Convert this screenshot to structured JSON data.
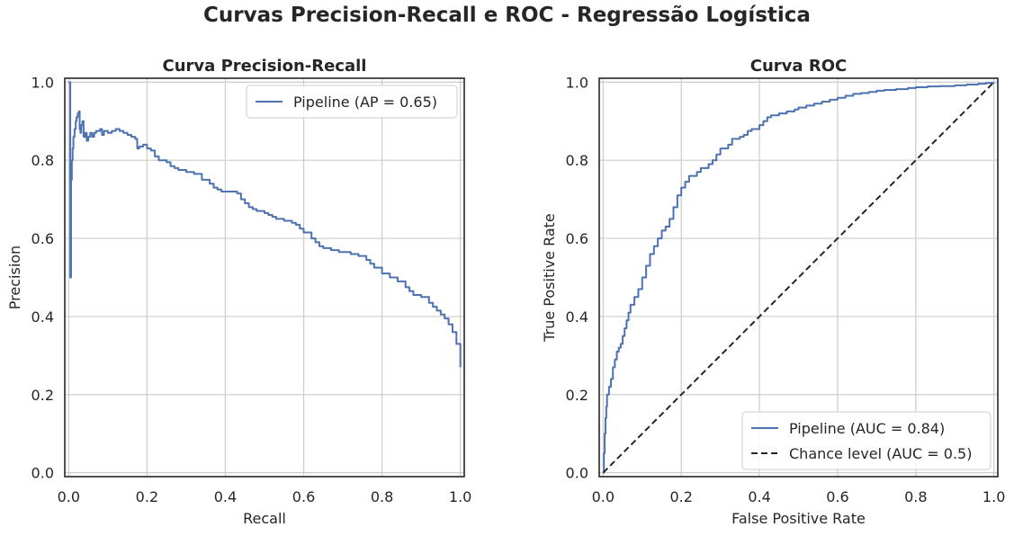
{
  "figure": {
    "suptitle": "Curvas Precision-Recall e ROC - Regressão Logística"
  },
  "chart_data": [
    {
      "type": "line",
      "title": "Curva Precision-Recall",
      "xlabel": "Recall",
      "ylabel": "Precision",
      "xlim": [
        -0.01,
        1.01
      ],
      "ylim": [
        -0.01,
        1.01
      ],
      "xticks": [
        "0.0",
        "0.2",
        "0.4",
        "0.6",
        "0.8",
        "1.0"
      ],
      "yticks": [
        "0.0",
        "0.2",
        "0.4",
        "0.6",
        "0.8",
        "1.0"
      ],
      "grid": true,
      "legend_position": "top-right",
      "series": [
        {
          "name": "Pipeline (AP = 0.65)",
          "color": "#4c72b0",
          "style": "solid",
          "step": true,
          "points": [
            [
              0.0,
              1.0
            ],
            [
              0.004,
              1.0
            ],
            [
              0.004,
              0.5
            ],
            [
              0.006,
              0.5
            ],
            [
              0.006,
              0.75
            ],
            [
              0.008,
              0.8
            ],
            [
              0.01,
              0.83
            ],
            [
              0.012,
              0.86
            ],
            [
              0.015,
              0.88
            ],
            [
              0.018,
              0.9
            ],
            [
              0.02,
              0.91
            ],
            [
              0.023,
              0.92
            ],
            [
              0.026,
              0.925
            ],
            [
              0.028,
              0.88
            ],
            [
              0.03,
              0.87
            ],
            [
              0.032,
              0.89
            ],
            [
              0.035,
              0.9
            ],
            [
              0.038,
              0.86
            ],
            [
              0.042,
              0.87
            ],
            [
              0.046,
              0.85
            ],
            [
              0.05,
              0.86
            ],
            [
              0.055,
              0.87
            ],
            [
              0.06,
              0.86
            ],
            [
              0.065,
              0.87
            ],
            [
              0.07,
              0.875
            ],
            [
              0.08,
              0.88
            ],
            [
              0.085,
              0.865
            ],
            [
              0.09,
              0.875
            ],
            [
              0.1,
              0.87
            ],
            [
              0.11,
              0.875
            ],
            [
              0.12,
              0.88
            ],
            [
              0.13,
              0.875
            ],
            [
              0.14,
              0.87
            ],
            [
              0.15,
              0.865
            ],
            [
              0.16,
              0.86
            ],
            [
              0.17,
              0.855
            ],
            [
              0.175,
              0.83
            ],
            [
              0.18,
              0.835
            ],
            [
              0.19,
              0.84
            ],
            [
              0.2,
              0.83
            ],
            [
              0.21,
              0.825
            ],
            [
              0.22,
              0.81
            ],
            [
              0.23,
              0.8
            ],
            [
              0.25,
              0.795
            ],
            [
              0.26,
              0.785
            ],
            [
              0.27,
              0.78
            ],
            [
              0.28,
              0.775
            ],
            [
              0.3,
              0.77
            ],
            [
              0.32,
              0.765
            ],
            [
              0.34,
              0.75
            ],
            [
              0.36,
              0.74
            ],
            [
              0.37,
              0.73
            ],
            [
              0.38,
              0.725
            ],
            [
              0.39,
              0.72
            ],
            [
              0.4,
              0.72
            ],
            [
              0.42,
              0.72
            ],
            [
              0.43,
              0.715
            ],
            [
              0.44,
              0.7
            ],
            [
              0.45,
              0.69
            ],
            [
              0.46,
              0.68
            ],
            [
              0.47,
              0.675
            ],
            [
              0.48,
              0.67
            ],
            [
              0.5,
              0.665
            ],
            [
              0.51,
              0.66
            ],
            [
              0.52,
              0.655
            ],
            [
              0.53,
              0.65
            ],
            [
              0.55,
              0.645
            ],
            [
              0.57,
              0.64
            ],
            [
              0.58,
              0.635
            ],
            [
              0.59,
              0.625
            ],
            [
              0.6,
              0.615
            ],
            [
              0.62,
              0.6
            ],
            [
              0.63,
              0.59
            ],
            [
              0.64,
              0.58
            ],
            [
              0.65,
              0.575
            ],
            [
              0.67,
              0.57
            ],
            [
              0.69,
              0.565
            ],
            [
              0.72,
              0.56
            ],
            [
              0.74,
              0.555
            ],
            [
              0.76,
              0.545
            ],
            [
              0.77,
              0.535
            ],
            [
              0.78,
              0.525
            ],
            [
              0.8,
              0.51
            ],
            [
              0.82,
              0.5
            ],
            [
              0.84,
              0.49
            ],
            [
              0.86,
              0.475
            ],
            [
              0.87,
              0.465
            ],
            [
              0.88,
              0.455
            ],
            [
              0.9,
              0.45
            ],
            [
              0.92,
              0.435
            ],
            [
              0.93,
              0.425
            ],
            [
              0.94,
              0.415
            ],
            [
              0.95,
              0.405
            ],
            [
              0.96,
              0.395
            ],
            [
              0.97,
              0.38
            ],
            [
              0.98,
              0.36
            ],
            [
              0.99,
              0.33
            ],
            [
              1.0,
              0.27
            ]
          ]
        }
      ]
    },
    {
      "type": "line",
      "title": "Curva ROC",
      "xlabel": "False Positive Rate",
      "ylabel": "True Positive Rate",
      "xlim": [
        -0.01,
        1.01
      ],
      "ylim": [
        -0.01,
        1.01
      ],
      "xticks": [
        "0.0",
        "0.2",
        "0.4",
        "0.6",
        "0.8",
        "1.0"
      ],
      "yticks": [
        "0.0",
        "0.2",
        "0.4",
        "0.6",
        "0.8",
        "1.0"
      ],
      "grid": true,
      "legend_position": "bottom-right",
      "series": [
        {
          "name": "Pipeline (AUC = 0.84)",
          "color": "#4c72b0",
          "style": "solid",
          "step": true,
          "points": [
            [
              0.0,
              0.0
            ],
            [
              0.002,
              0.05
            ],
            [
              0.004,
              0.1
            ],
            [
              0.006,
              0.14
            ],
            [
              0.008,
              0.17
            ],
            [
              0.01,
              0.2
            ],
            [
              0.015,
              0.22
            ],
            [
              0.02,
              0.24
            ],
            [
              0.025,
              0.27
            ],
            [
              0.03,
              0.29
            ],
            [
              0.035,
              0.31
            ],
            [
              0.04,
              0.32
            ],
            [
              0.045,
              0.33
            ],
            [
              0.05,
              0.35
            ],
            [
              0.055,
              0.37
            ],
            [
              0.06,
              0.39
            ],
            [
              0.065,
              0.41
            ],
            [
              0.07,
              0.43
            ],
            [
              0.08,
              0.45
            ],
            [
              0.09,
              0.47
            ],
            [
              0.1,
              0.5
            ],
            [
              0.11,
              0.53
            ],
            [
              0.12,
              0.56
            ],
            [
              0.13,
              0.58
            ],
            [
              0.14,
              0.6
            ],
            [
              0.15,
              0.62
            ],
            [
              0.16,
              0.63
            ],
            [
              0.17,
              0.65
            ],
            [
              0.18,
              0.68
            ],
            [
              0.19,
              0.71
            ],
            [
              0.2,
              0.73
            ],
            [
              0.21,
              0.745
            ],
            [
              0.22,
              0.76
            ],
            [
              0.24,
              0.77
            ],
            [
              0.25,
              0.78
            ],
            [
              0.27,
              0.79
            ],
            [
              0.28,
              0.8
            ],
            [
              0.29,
              0.815
            ],
            [
              0.3,
              0.83
            ],
            [
              0.32,
              0.84
            ],
            [
              0.33,
              0.855
            ],
            [
              0.35,
              0.86
            ],
            [
              0.36,
              0.865
            ],
            [
              0.37,
              0.875
            ],
            [
              0.38,
              0.88
            ],
            [
              0.4,
              0.89
            ],
            [
              0.41,
              0.9
            ],
            [
              0.42,
              0.91
            ],
            [
              0.43,
              0.915
            ],
            [
              0.45,
              0.92
            ],
            [
              0.47,
              0.925
            ],
            [
              0.49,
              0.93
            ],
            [
              0.5,
              0.935
            ],
            [
              0.52,
              0.94
            ],
            [
              0.54,
              0.945
            ],
            [
              0.56,
              0.95
            ],
            [
              0.58,
              0.955
            ],
            [
              0.6,
              0.96
            ],
            [
              0.62,
              0.965
            ],
            [
              0.64,
              0.97
            ],
            [
              0.66,
              0.972
            ],
            [
              0.68,
              0.975
            ],
            [
              0.7,
              0.978
            ],
            [
              0.72,
              0.98
            ],
            [
              0.75,
              0.982
            ],
            [
              0.78,
              0.985
            ],
            [
              0.8,
              0.987
            ],
            [
              0.83,
              0.989
            ],
            [
              0.86,
              0.99
            ],
            [
              0.9,
              0.992
            ],
            [
              0.93,
              0.994
            ],
            [
              0.96,
              0.996
            ],
            [
              0.98,
              0.998
            ],
            [
              1.0,
              1.0
            ]
          ]
        },
        {
          "name": "Chance level (AUC = 0.5)",
          "color": "#262626",
          "style": "dashed",
          "step": false,
          "points": [
            [
              0.0,
              0.0
            ],
            [
              1.0,
              1.0
            ]
          ]
        }
      ]
    }
  ]
}
